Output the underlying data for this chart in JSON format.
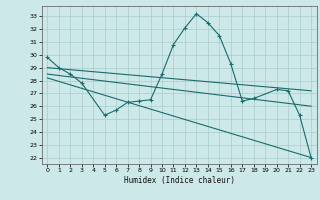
{
  "xlabel": "Humidex (Indice chaleur)",
  "bg_color": "#cce8e8",
  "grid_color": "#aacccc",
  "line_color": "#1a6b6b",
  "ylim": [
    21.5,
    33.8
  ],
  "xlim": [
    -0.5,
    23.5
  ],
  "yticks": [
    22,
    23,
    24,
    25,
    26,
    27,
    28,
    29,
    30,
    31,
    32,
    33
  ],
  "xticks": [
    0,
    1,
    2,
    3,
    4,
    5,
    6,
    7,
    8,
    9,
    10,
    11,
    12,
    13,
    14,
    15,
    16,
    17,
    18,
    19,
    20,
    21,
    22,
    23
  ],
  "series": [
    {
      "x": [
        0,
        1,
        2,
        3,
        5,
        6,
        7,
        8,
        9,
        10,
        11,
        12,
        13,
        14,
        15,
        16,
        17,
        18,
        20,
        21,
        22,
        23
      ],
      "y": [
        29.8,
        29.0,
        28.5,
        27.8,
        25.3,
        25.7,
        26.3,
        26.4,
        26.5,
        28.5,
        30.8,
        32.1,
        33.2,
        32.5,
        31.5,
        29.3,
        26.4,
        26.6,
        27.3,
        27.2,
        25.3,
        22.0
      ],
      "marker": true
    },
    {
      "x": [
        0,
        23
      ],
      "y": [
        29.0,
        27.2
      ],
      "marker": false
    },
    {
      "x": [
        0,
        23
      ],
      "y": [
        28.5,
        26.0
      ],
      "marker": false
    },
    {
      "x": [
        0,
        23
      ],
      "y": [
        28.2,
        22.0
      ],
      "marker": false
    }
  ]
}
